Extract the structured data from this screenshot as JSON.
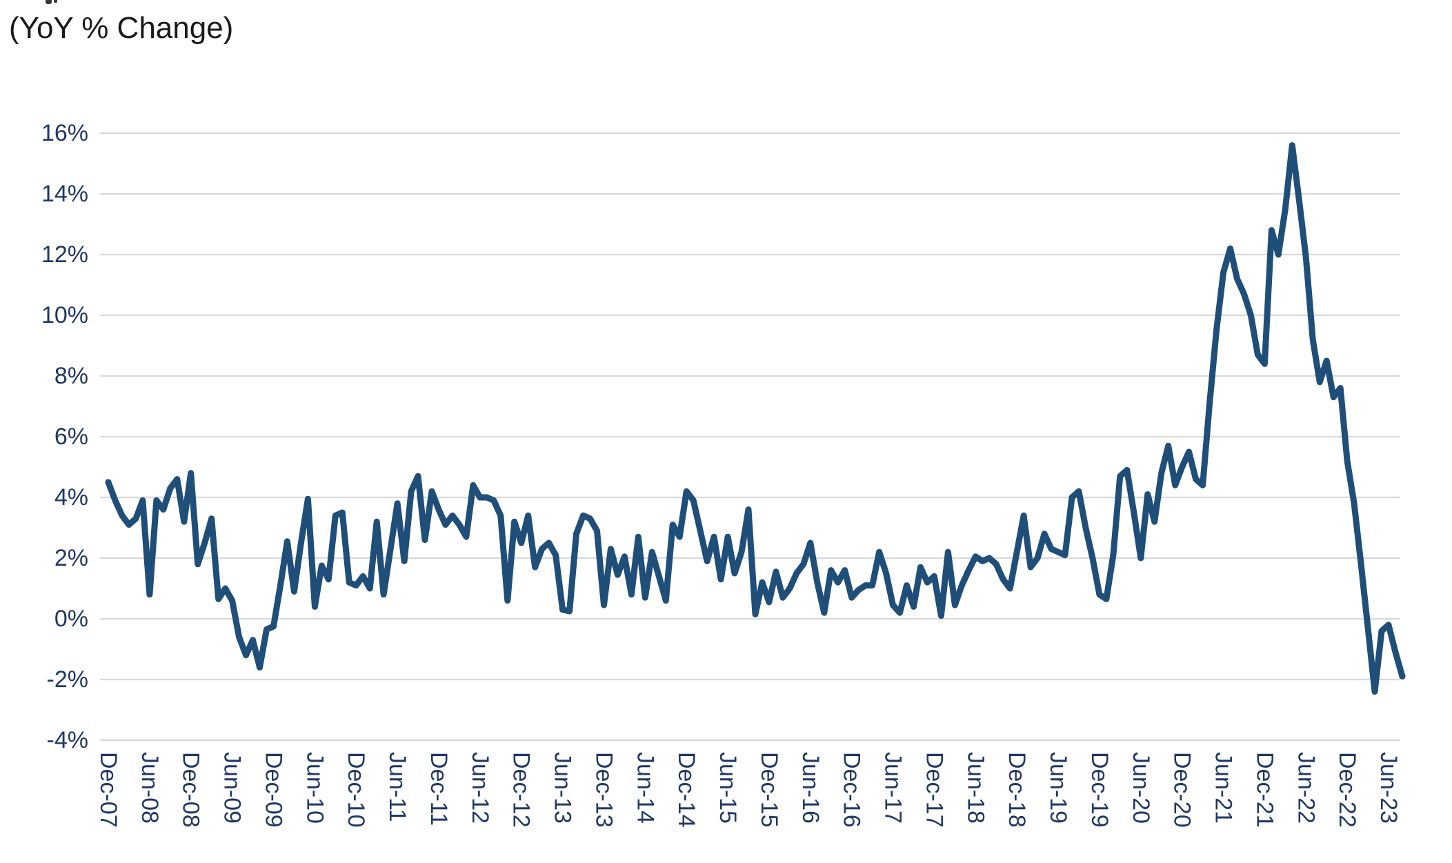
{
  "title": "(YoY % Change)",
  "colors": {
    "series_line": "#1F4E79",
    "axis_labels": "#1F3864",
    "gridline": "#D9D9D9",
    "title_text": "#1a1a1a",
    "background": "#FFFFFF"
  },
  "chart_data": {
    "type": "line",
    "title": "(YoY % Change)",
    "xlabel": "",
    "ylabel": "",
    "grid": true,
    "legend": "none",
    "ylim": [
      -4,
      16
    ],
    "y_tick_labels": [
      "16%",
      "14%",
      "12%",
      "10%",
      "8%",
      "6%",
      "4%",
      "2%",
      "0%",
      "-2%",
      "-4%"
    ],
    "y_tick_values": [
      16,
      14,
      12,
      10,
      8,
      6,
      4,
      2,
      0,
      -2,
      -4
    ],
    "x_tick_labels": [
      "Dec-07",
      "Jun-08",
      "Dec-08",
      "Jun-09",
      "Dec-09",
      "Jun-10",
      "Dec-10",
      "Jun-11",
      "Dec-11",
      "Jun-12",
      "Dec-12",
      "Jun-13",
      "Dec-13",
      "Jun-14",
      "Dec-14",
      "Jun-15",
      "Dec-15",
      "Jun-16",
      "Dec-16",
      "Jun-17",
      "Dec-17",
      "Jun-18",
      "Dec-18",
      "Jun-19",
      "Dec-19",
      "Jun-20",
      "Dec-20",
      "Jun-21",
      "Dec-21",
      "Jun-22",
      "Dec-22",
      "Jun-23"
    ],
    "x_tick_interval_months": 6,
    "series": [
      {
        "name": "YoY % Change",
        "start_month": "Dec-07",
        "frequency": "monthly",
        "values": [
          4.5,
          3.9,
          3.4,
          3.1,
          3.3,
          3.9,
          0.8,
          3.9,
          3.6,
          4.3,
          4.6,
          3.2,
          4.8,
          1.8,
          2.5,
          3.3,
          0.65,
          1.0,
          0.6,
          -0.6,
          -1.2,
          -0.7,
          -1.6,
          -0.35,
          -0.25,
          1.1,
          2.55,
          0.9,
          2.5,
          3.95,
          0.4,
          1.75,
          1.3,
          3.4,
          3.5,
          1.2,
          1.1,
          1.4,
          1.0,
          3.2,
          0.8,
          2.3,
          3.8,
          1.9,
          4.2,
          4.7,
          2.6,
          4.2,
          3.6,
          3.1,
          3.4,
          3.1,
          2.7,
          4.4,
          4.0,
          4.0,
          3.9,
          3.4,
          0.6,
          3.2,
          2.5,
          3.4,
          1.7,
          2.3,
          2.5,
          2.1,
          0.3,
          0.25,
          2.8,
          3.4,
          3.3,
          2.9,
          0.45,
          2.3,
          1.45,
          2.05,
          0.8,
          2.7,
          0.7,
          2.2,
          1.4,
          0.6,
          3.1,
          2.7,
          4.2,
          3.9,
          2.9,
          1.9,
          2.7,
          1.3,
          2.7,
          1.5,
          2.2,
          3.6,
          0.15,
          1.2,
          0.55,
          1.55,
          0.7,
          1.0,
          1.5,
          1.8,
          2.5,
          1.2,
          0.2,
          1.6,
          1.2,
          1.6,
          0.7,
          0.95,
          1.1,
          1.1,
          2.2,
          1.5,
          0.45,
          0.2,
          1.1,
          0.4,
          1.7,
          1.2,
          1.4,
          0.1,
          2.2,
          0.45,
          1.1,
          1.6,
          2.05,
          1.9,
          2.0,
          1.8,
          1.3,
          1.0,
          2.2,
          3.4,
          1.7,
          2.0,
          2.8,
          2.3,
          2.2,
          2.1,
          4.0,
          4.2,
          3.0,
          2.0,
          0.8,
          0.65,
          2.1,
          4.7,
          4.9,
          3.5,
          2.0,
          4.1,
          3.2,
          4.8,
          5.7,
          4.4,
          5.0,
          5.5,
          4.6,
          4.4,
          7.1,
          9.5,
          11.4,
          12.2,
          11.2,
          10.7,
          10.0,
          8.7,
          8.4,
          12.8,
          12.0,
          13.5,
          15.6,
          13.8,
          11.9,
          9.2,
          7.8,
          8.5,
          7.3,
          7.6,
          5.2,
          3.8,
          1.8,
          -0.3,
          -2.4,
          -0.4,
          -0.2,
          -1.1,
          -1.9
        ]
      }
    ]
  }
}
